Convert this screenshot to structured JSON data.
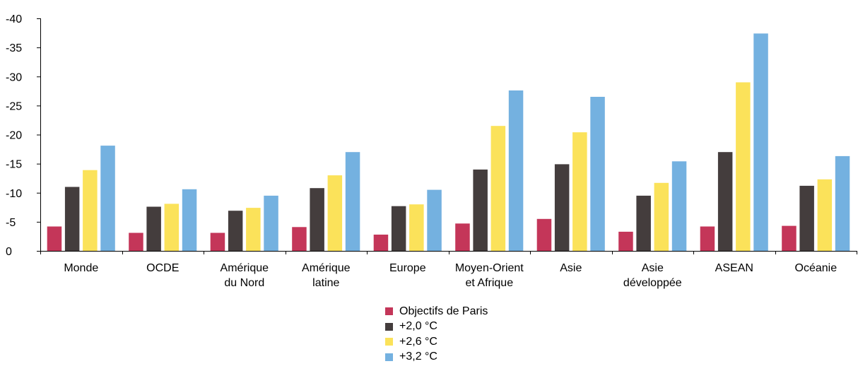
{
  "chart_data": {
    "type": "bar",
    "title": "",
    "xlabel": "",
    "ylabel": "",
    "ylim": [
      0,
      -40
    ],
    "yticks": [
      0,
      -5,
      -10,
      -15,
      -20,
      -25,
      -30,
      -35,
      -40
    ],
    "ytick_labels": [
      "0",
      "-5",
      "-10",
      "-15",
      "-20",
      "-25",
      "-30",
      "-35",
      "-40"
    ],
    "grid": false,
    "legend_position": "bottom",
    "categories": [
      [
        "Monde"
      ],
      [
        "OCDE"
      ],
      [
        "Amérique",
        "du Nord"
      ],
      [
        "Amérique",
        "latine"
      ],
      [
        "Europe"
      ],
      [
        "Moyen-Orient",
        "et Afrique"
      ],
      [
        "Asie"
      ],
      [
        "Asie",
        "développée"
      ],
      [
        "ASEAN"
      ],
      [
        "Océanie"
      ]
    ],
    "series": [
      {
        "name": "Objectifs de Paris",
        "color": "#c43659",
        "values": [
          -4.2,
          -3.1,
          -3.1,
          -4.1,
          -2.8,
          -4.7,
          -5.5,
          -3.3,
          -4.2,
          -4.3
        ]
      },
      {
        "name": "+2,0 °C",
        "color": "#443d3d",
        "values": [
          -11.0,
          -7.6,
          -6.9,
          -10.8,
          -7.7,
          -14.0,
          -14.9,
          -9.5,
          -17.0,
          -11.2
        ]
      },
      {
        "name": "+2,6 °C",
        "color": "#fbe25a",
        "values": [
          -13.9,
          -8.1,
          -7.4,
          -13.0,
          -8.0,
          -21.5,
          -20.4,
          -11.7,
          -29.0,
          -12.3
        ]
      },
      {
        "name": "+3,2 °C",
        "color": "#74b1e0",
        "values": [
          -18.1,
          -10.6,
          -9.5,
          -17.0,
          -10.5,
          -27.6,
          -26.5,
          -15.4,
          -37.4,
          -16.3
        ]
      }
    ]
  }
}
